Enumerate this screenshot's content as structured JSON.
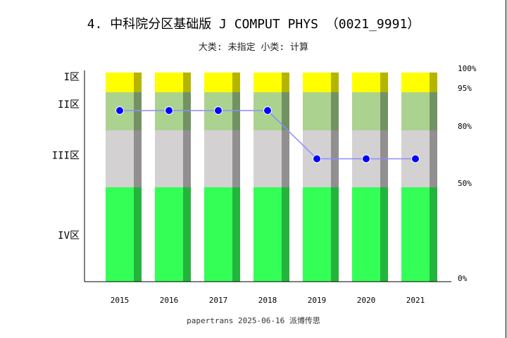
{
  "title": "4. 中科院分区基础版 J COMPUT PHYS （0021_9991）",
  "subtitle": "大类: 未指定 小类: 计算",
  "footer": "papertrans 2025-06-16 派博传思",
  "chart_data": {
    "type": "bar",
    "categories": [
      "2015",
      "2016",
      "2017",
      "2018",
      "2019",
      "2020",
      "2021"
    ],
    "zones": [
      {
        "label": "I区",
        "range": [
          95,
          100
        ],
        "color": "#ffff00",
        "shade": "#b5b500"
      },
      {
        "label": "II区",
        "range": [
          80,
          95
        ],
        "color": "#acd28f",
        "shade": "#739264"
      },
      {
        "label": "III区",
        "range": [
          50,
          80
        ],
        "color": "#d3d1d2",
        "shade": "#918f90"
      },
      {
        "label": "IV区",
        "range": [
          0,
          50
        ],
        "color": "#33ff57",
        "shade": "#24b43d"
      }
    ],
    "right_ticks": [
      "0%",
      "50%",
      "80%",
      "95%",
      "100%"
    ],
    "series": [
      {
        "values": [
          "II区",
          "II区",
          "II区",
          "II区",
          "III区",
          "III区",
          "III区"
        ],
        "color": "#0000ff",
        "line_color": "#8c8cff"
      }
    ]
  }
}
